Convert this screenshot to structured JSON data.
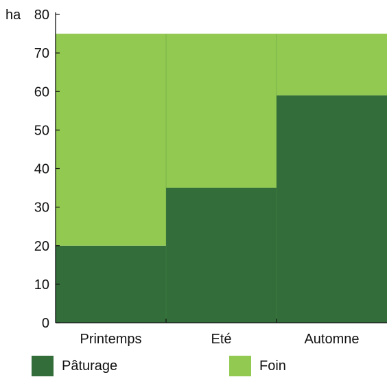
{
  "chart_data": {
    "type": "bar",
    "stacked": true,
    "ylabel": "ha",
    "ylim": [
      0,
      80
    ],
    "yticks": [
      0,
      10,
      20,
      30,
      40,
      50,
      60,
      70,
      80
    ],
    "categories": [
      "Printemps",
      "Eté",
      "Automne"
    ],
    "series": [
      {
        "name": "Pâturage",
        "color": "#336e3a",
        "values": [
          20,
          35,
          59
        ]
      },
      {
        "name": "Foin",
        "color": "#92c951",
        "values": [
          55,
          40,
          16
        ]
      }
    ],
    "grid": false,
    "legend_position": "bottom"
  }
}
